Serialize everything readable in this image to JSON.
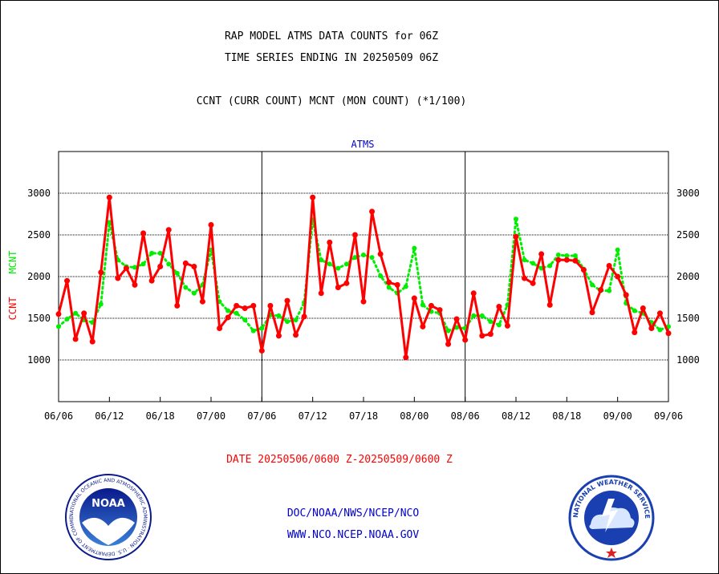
{
  "title": {
    "line1": "RAP MODEL ATMS DATA COUNTS for 06Z",
    "line2": "TIME SERIES ENDING IN 20250509 06Z",
    "line3": "CCNT (CURR COUNT) MCNT (MON COUNT) (*1/100)"
  },
  "footer": {
    "date_range": "DATE 20250506/0600 Z-20250509/0600 Z",
    "org": "DOC/NOAA/NWS/NCEP/NCO",
    "url": "WWW.NCO.NCEP.NOAA.GOV"
  },
  "logos": {
    "noaa_text": "NOAA",
    "noaa_ring": "NATIONAL OCEANIC AND ATMOSPHERIC ADMINISTRATION · U.S. DEPARTMENT OF COMMERCE",
    "nws_ring": "NATIONAL WEATHER SERVICE"
  },
  "colors": {
    "ccnt": "#ff0000",
    "mcnt": "#00ee00",
    "title_blue": "#0000cc",
    "grid": "#000000"
  },
  "chart_data": {
    "type": "line",
    "title": "ATMS",
    "ylabel_parts": [
      {
        "text": "CCNT",
        "color": "#ff0000"
      },
      {
        "text": "MCNT",
        "color": "#00ee00"
      }
    ],
    "xlim": [
      0,
      72
    ],
    "ylim": [
      500,
      3500
    ],
    "yticks": [
      1000,
      1500,
      2000,
      2500,
      3000
    ],
    "xtick_positions": [
      0,
      6,
      12,
      18,
      24,
      30,
      36,
      42,
      48,
      54,
      60,
      66,
      72
    ],
    "xtick_labels": [
      "06/06",
      "06/12",
      "06/18",
      "07/00",
      "07/06",
      "07/12",
      "07/18",
      "08/00",
      "08/06",
      "08/12",
      "08/18",
      "09/00",
      "09/06"
    ],
    "day_boundaries": [
      24,
      48
    ],
    "grid": true,
    "series": [
      {
        "name": "CCNT",
        "color": "#ff0000",
        "style": "solid",
        "values": [
          1550,
          1950,
          1250,
          1560,
          1220,
          2050,
          2950,
          1980,
          2100,
          1900,
          2520,
          1950,
          2120,
          2560,
          1650,
          2160,
          2120,
          1700,
          2620,
          1380,
          1510,
          1650,
          1620,
          1650,
          1110,
          1650,
          1290,
          1710,
          1300,
          1520,
          2950,
          1800,
          2410,
          1870,
          1920,
          2500,
          1700,
          2780,
          2270,
          1930,
          1900,
          1030,
          1740,
          1400,
          1650,
          1600,
          1190,
          1490,
          1240,
          1800,
          1290,
          1310,
          1640,
          1410,
          2480,
          1980,
          1920,
          2270,
          1660,
          2200,
          2200,
          2190,
          2080,
          1570,
          1840,
          2130,
          2000,
          1780,
          1330,
          1620,
          1380,
          1560,
          1320
        ]
      },
      {
        "name": "MCNT",
        "color": "#00ee00",
        "style": "dotted",
        "values": [
          1400,
          1490,
          1560,
          1480,
          1450,
          1670,
          2650,
          2200,
          2120,
          2110,
          2150,
          2280,
          2280,
          2150,
          2040,
          1870,
          1800,
          1900,
          2320,
          1700,
          1590,
          1560,
          1480,
          1350,
          1380,
          1540,
          1530,
          1460,
          1480,
          1690,
          2680,
          2200,
          2150,
          2100,
          2150,
          2230,
          2260,
          2230,
          2010,
          1870,
          1800,
          1880,
          2340,
          1660,
          1580,
          1560,
          1350,
          1390,
          1380,
          1530,
          1530,
          1460,
          1420,
          1660,
          2690,
          2200,
          2160,
          2100,
          2130,
          2260,
          2250,
          2250,
          2090,
          1900,
          1830,
          1830,
          2320,
          1680,
          1590,
          1560,
          1450,
          1360,
          1400
        ]
      }
    ]
  }
}
